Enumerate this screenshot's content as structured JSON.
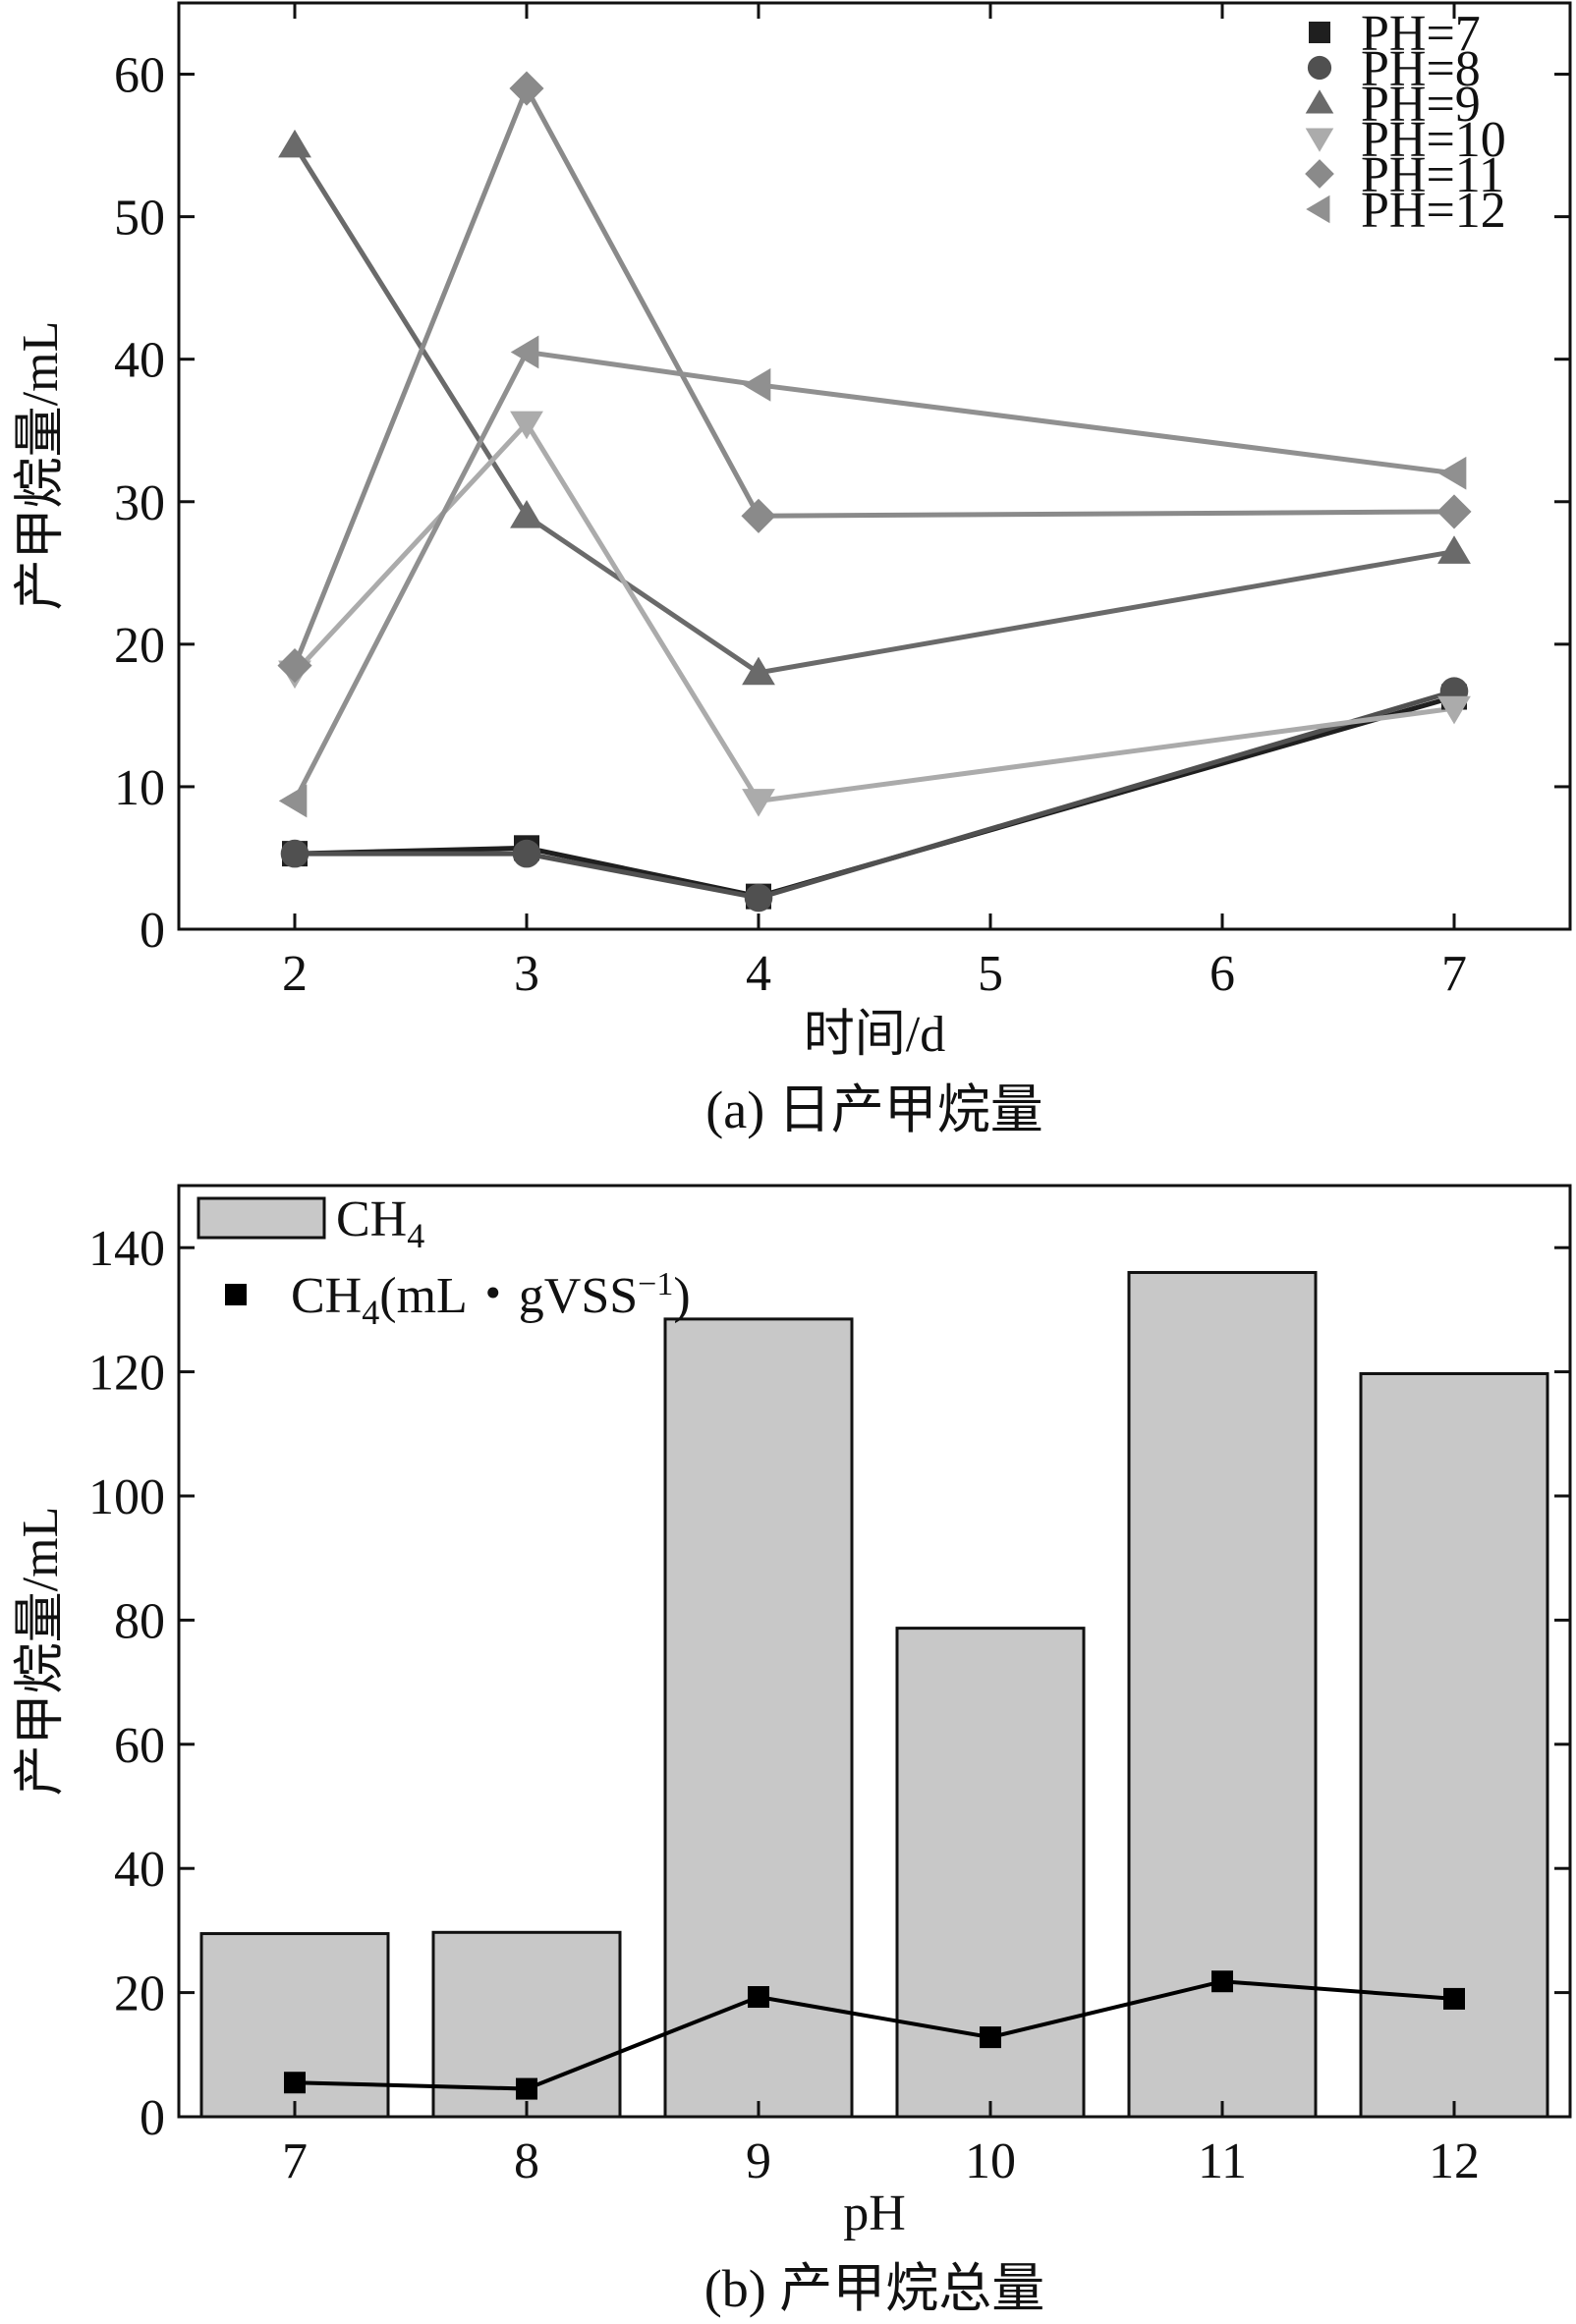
{
  "chart_data": [
    {
      "type": "line",
      "xlabel": "时间/d",
      "ylabel": "产甲烷量/mL",
      "caption": "(a) 日产甲烷量",
      "xlim": [
        1.5,
        7.5
      ],
      "ylim": [
        0,
        65
      ],
      "xticks": [
        2,
        3,
        4,
        5,
        6,
        7
      ],
      "yticks": [
        0,
        10,
        20,
        30,
        40,
        50,
        60
      ],
      "legend_position": "top-right",
      "series": [
        {
          "name": "PH=7",
          "marker": "square",
          "color": "#1f1f1f",
          "x": [
            2,
            3,
            4,
            7
          ],
          "y": [
            5.3,
            5.7,
            2.3,
            16.3
          ]
        },
        {
          "name": "PH=8",
          "marker": "circle",
          "color": "#505050",
          "x": [
            2,
            3,
            4,
            7
          ],
          "y": [
            5.3,
            5.3,
            2.2,
            16.7
          ]
        },
        {
          "name": "PH=9",
          "marker": "triangle-up",
          "color": "#6a6a6a",
          "x": [
            2,
            3,
            4,
            7
          ],
          "y": [
            55.0,
            29.0,
            18.0,
            26.5
          ]
        },
        {
          "name": "PH=10",
          "marker": "triangle-down",
          "color": "#ababab",
          "x": [
            2,
            3,
            4,
            7
          ],
          "y": [
            18.0,
            35.5,
            9.0,
            15.5
          ]
        },
        {
          "name": "PH=11",
          "marker": "diamond",
          "color": "#8a8a8a",
          "x": [
            2,
            3,
            4,
            7
          ],
          "y": [
            18.5,
            59.0,
            29.0,
            29.3
          ]
        },
        {
          "name": "PH=12",
          "marker": "triangle-left",
          "color": "#909090",
          "x": [
            2,
            3,
            4,
            7
          ],
          "y": [
            9.0,
            40.5,
            38.2,
            32.0
          ]
        }
      ]
    },
    {
      "type": "bar",
      "xlabel": "pH",
      "ylabel": "产甲烷量/mL",
      "caption": "(b) 产甲烷总量",
      "categories": [
        "7",
        "8",
        "9",
        "10",
        "11",
        "12"
      ],
      "ylim": [
        0,
        150
      ],
      "yticks": [
        0,
        20,
        40,
        60,
        80,
        100,
        120,
        140
      ],
      "legend_position": "top-left",
      "bar_color": "#c8c8c8",
      "line_color": "#000000",
      "series": [
        {
          "name": "CH",
          "legend_sub": "4",
          "kind": "bar",
          "values": [
            29.5,
            29.7,
            128.5,
            78.7,
            136.0,
            119.7
          ]
        },
        {
          "name": "CH",
          "legend_sub": "4",
          "legend_suffix": "(mL・gVSS",
          "legend_sup": "−1",
          "legend_end": ")",
          "kind": "line",
          "values": [
            5.5,
            4.5,
            19.3,
            12.8,
            21.8,
            19.0
          ]
        }
      ]
    }
  ]
}
